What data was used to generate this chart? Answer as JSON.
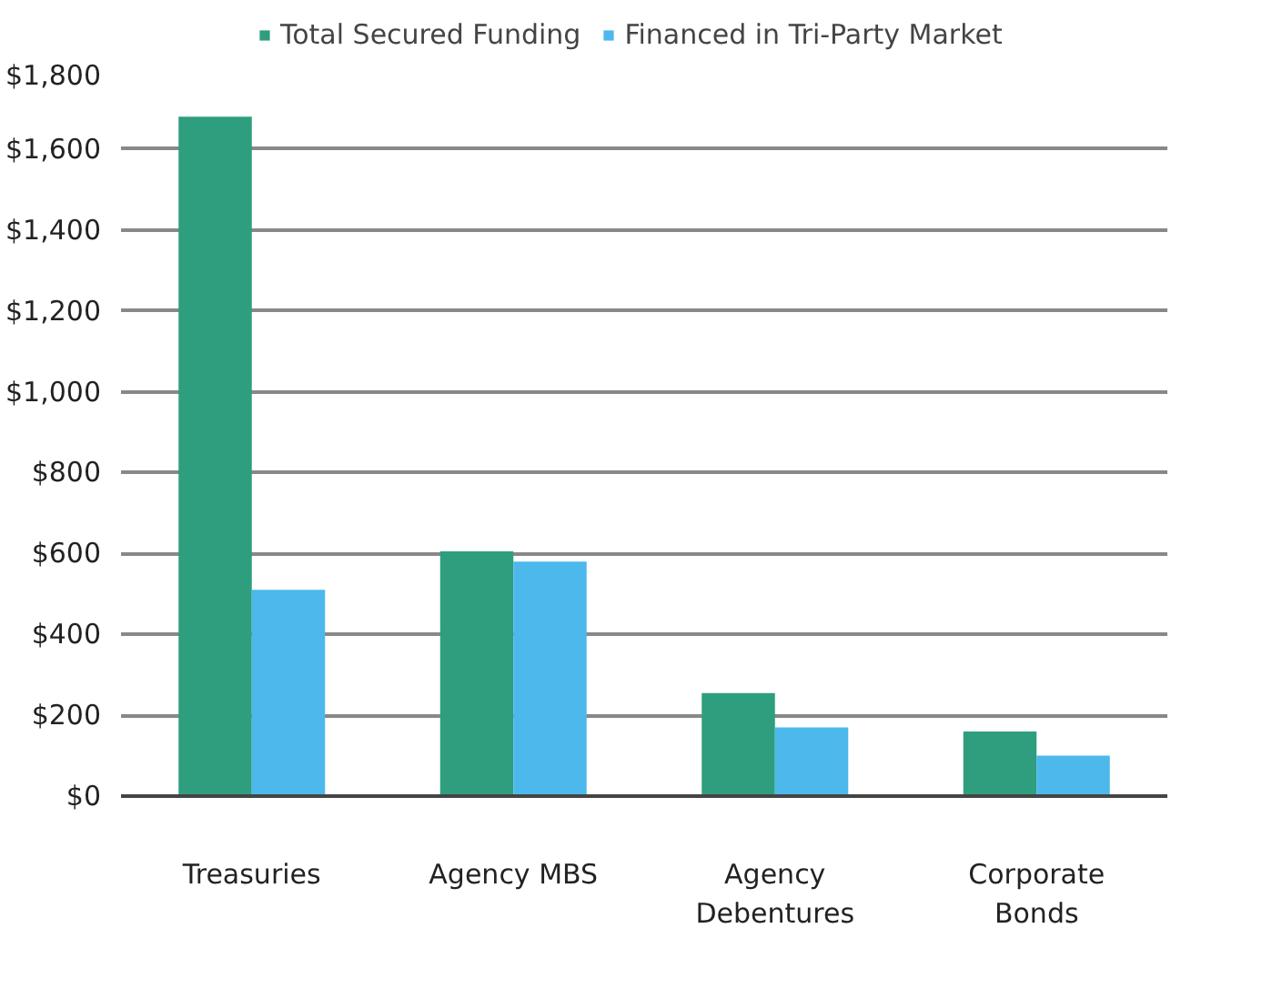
{
  "chart_data": {
    "type": "bar",
    "categories": [
      "Treasuries",
      "Agency MBS",
      "Agency Debentures",
      "Corporate Bonds"
    ],
    "series": [
      {
        "name": "Total Secured Funding",
        "color": "#2e9e7e",
        "values": [
          1680,
          605,
          255,
          160
        ]
      },
      {
        "name": "Financed in Tri-Party Market",
        "color": "#4db8ec",
        "values": [
          510,
          580,
          170,
          100
        ]
      }
    ],
    "ylim": [
      0,
      1800
    ],
    "yticks": [
      {
        "value": 0,
        "label": "$0"
      },
      {
        "value": 200,
        "label": "$200"
      },
      {
        "value": 400,
        "label": "$400"
      },
      {
        "value": 600,
        "label": "$600"
      },
      {
        "value": 800,
        "label": "$800"
      },
      {
        "value": 1000,
        "label": "$1,000"
      },
      {
        "value": 1200,
        "label": "$1,200"
      },
      {
        "value": 1400,
        "label": "$1,400"
      },
      {
        "value": 1600,
        "label": "$1,600"
      },
      {
        "value": 1800,
        "label": "$1,800"
      }
    ],
    "grid": "y",
    "legend": "top"
  }
}
